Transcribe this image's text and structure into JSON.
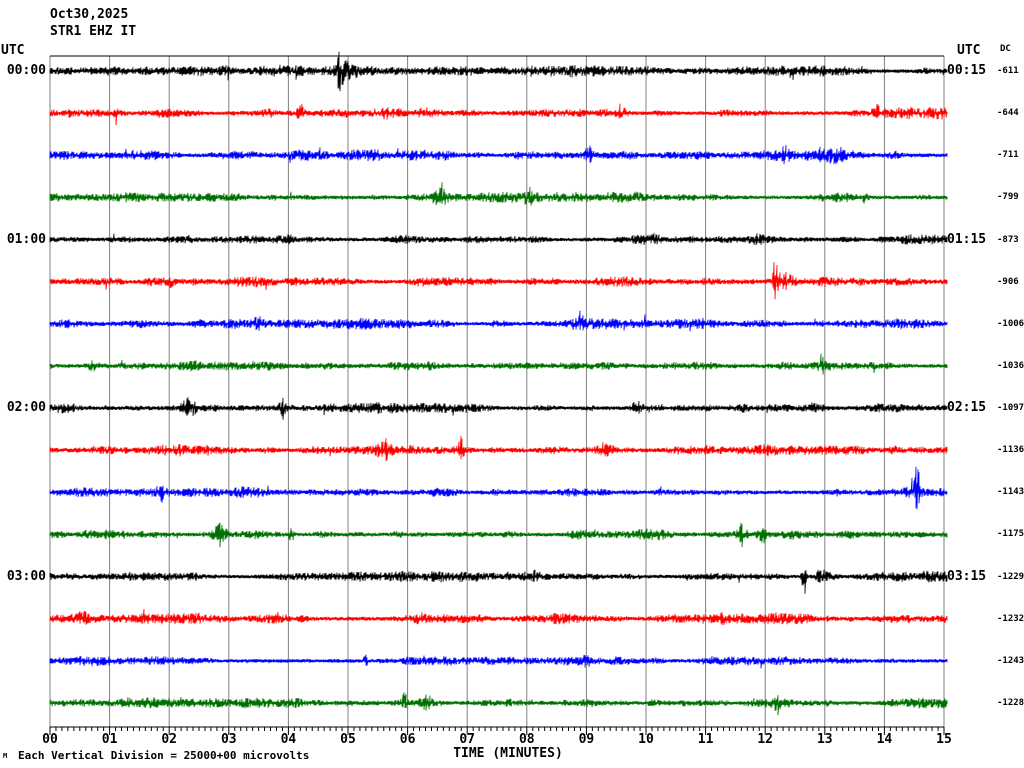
{
  "title": {
    "date": "Oct30,2025",
    "station": "STR1 EHZ IT"
  },
  "headers": {
    "utc_left": "UTC",
    "utc_right": "UTC",
    "dc": "DC"
  },
  "footer": {
    "note": "Each Vertical Division = 25000+00 microvolts",
    "corner_mark": "M"
  },
  "colors": {
    "black": "#000000",
    "red": "#ff0000",
    "blue": "#0000ff",
    "green": "#007000",
    "grid": "#808080",
    "axis": "#000000"
  },
  "chart_data": {
    "type": "line",
    "title": "STR1 EHZ IT",
    "subtitle": "Oct30,2025",
    "xlabel": "TIME (MINUTES)",
    "x_ticks": [
      "00",
      "01",
      "02",
      "03",
      "04",
      "05",
      "06",
      "07",
      "08",
      "09",
      "10",
      "11",
      "12",
      "13",
      "14",
      "15"
    ],
    "x_range": [
      0,
      15
    ],
    "minor_tick_step_minutes": 0.1,
    "grid": "vertical gray line each minute",
    "legend_position": "none",
    "scale_note": "Each Vertical Division = 25000+00 microvolts",
    "traces": [
      {
        "color": "black",
        "left_label": "00:00",
        "right_label": "00:15",
        "dc": -611,
        "noise": 2.8,
        "events": [
          [
            4.87,
            13,
            15,
            0.05
          ],
          [
            4.95,
            6,
            6,
            0.18
          ],
          [
            8.75,
            4,
            4,
            0.06
          ],
          [
            12.45,
            4,
            5,
            0.05
          ]
        ]
      },
      {
        "color": "red",
        "left_label": "",
        "right_label": "",
        "dc": -644,
        "noise": 3.1,
        "events": [
          [
            1.12,
            7,
            4,
            0.04
          ],
          [
            4.2,
            8,
            5,
            0.08
          ],
          [
            5.65,
            5,
            5,
            0.25
          ],
          [
            9.6,
            4,
            4,
            0.1
          ],
          [
            13.9,
            5,
            4,
            0.08
          ]
        ]
      },
      {
        "color": "blue",
        "left_label": "",
        "right_label": "",
        "dc": -711,
        "noise": 3.0,
        "events": [
          [
            9.05,
            8,
            5,
            0.07
          ],
          [
            12.35,
            5,
            4,
            0.08
          ],
          [
            13.1,
            6,
            5,
            0.3
          ]
        ]
      },
      {
        "color": "green",
        "left_label": "",
        "right_label": "",
        "dc": -799,
        "noise": 2.9,
        "events": [
          [
            6.55,
            8,
            9,
            0.12
          ],
          [
            8.05,
            7,
            7,
            0.12
          ],
          [
            13.65,
            5,
            4,
            0.06
          ]
        ]
      },
      {
        "color": "black",
        "left_label": "01:00",
        "right_label": "01:15",
        "dc": -873,
        "noise": 2.7,
        "events": [
          [
            6.0,
            3,
            3,
            0.3
          ],
          [
            11.9,
            4,
            4,
            0.2
          ]
        ]
      },
      {
        "color": "red",
        "left_label": "",
        "right_label": "",
        "dc": -906,
        "noise": 3.0,
        "events": [
          [
            12.17,
            26,
            14,
            0.03
          ],
          [
            12.3,
            6,
            5,
            0.2
          ],
          [
            2.0,
            4,
            4,
            0.1
          ]
        ]
      },
      {
        "color": "blue",
        "left_label": "",
        "right_label": "",
        "dc": -1006,
        "noise": 2.9,
        "events": [
          [
            8.9,
            8,
            4,
            0.05
          ],
          [
            3.5,
            4,
            3,
            0.08
          ]
        ]
      },
      {
        "color": "green",
        "left_label": "",
        "right_label": "",
        "dc": -1036,
        "noise": 2.8,
        "events": [
          [
            12.95,
            11,
            6,
            0.05
          ],
          [
            0.7,
            4,
            4,
            0.1
          ],
          [
            6.4,
            4,
            4,
            0.1
          ]
        ]
      },
      {
        "color": "black",
        "left_label": "02:00",
        "right_label": "02:15",
        "dc": -1097,
        "noise": 2.9,
        "events": [
          [
            2.35,
            8,
            6,
            0.12
          ],
          [
            3.9,
            8,
            8,
            0.05
          ],
          [
            9.85,
            6,
            4,
            0.08
          ]
        ]
      },
      {
        "color": "red",
        "left_label": "",
        "right_label": "",
        "dc": -1136,
        "noise": 3.1,
        "events": [
          [
            5.6,
            7,
            8,
            0.1
          ],
          [
            6.9,
            11,
            7,
            0.05
          ],
          [
            9.3,
            6,
            5,
            0.15
          ]
        ]
      },
      {
        "color": "blue",
        "left_label": "",
        "right_label": "",
        "dc": -1143,
        "noise": 2.9,
        "events": [
          [
            1.85,
            5,
            6,
            0.05
          ],
          [
            14.55,
            24,
            9,
            0.04
          ],
          [
            14.5,
            8,
            6,
            0.15
          ]
        ]
      },
      {
        "color": "green",
        "left_label": "",
        "right_label": "",
        "dc": -1175,
        "noise": 2.9,
        "events": [
          [
            2.85,
            8,
            9,
            0.1
          ],
          [
            4.05,
            5,
            7,
            0.05
          ],
          [
            11.6,
            9,
            10,
            0.07
          ],
          [
            11.95,
            9,
            7,
            0.06
          ]
        ]
      },
      {
        "color": "black",
        "left_label": "03:00",
        "right_label": "03:15",
        "dc": -1229,
        "noise": 2.9,
        "events": [
          [
            8.15,
            6,
            5,
            0.05
          ],
          [
            12.65,
            13,
            21,
            0.035
          ],
          [
            12.95,
            7,
            5,
            0.12
          ]
        ]
      },
      {
        "color": "red",
        "left_label": "",
        "right_label": "",
        "dc": -1232,
        "noise": 3.1,
        "events": [
          [
            0.55,
            7,
            5,
            0.15
          ],
          [
            6.2,
            5,
            4,
            0.1
          ],
          [
            11.3,
            6,
            4,
            0.05
          ]
        ]
      },
      {
        "color": "blue",
        "left_label": "",
        "right_label": "",
        "dc": -1243,
        "noise": 2.9,
        "events": [
          [
            5.3,
            7,
            4,
            0.04
          ],
          [
            9.0,
            4,
            3,
            0.1
          ]
        ]
      },
      {
        "color": "green",
        "left_label": "",
        "right_label": "",
        "dc": -1228,
        "noise": 2.9,
        "events": [
          [
            5.95,
            9,
            6,
            0.05
          ],
          [
            6.3,
            5,
            4,
            0.12
          ],
          [
            12.2,
            6,
            13,
            0.045
          ]
        ]
      }
    ]
  }
}
